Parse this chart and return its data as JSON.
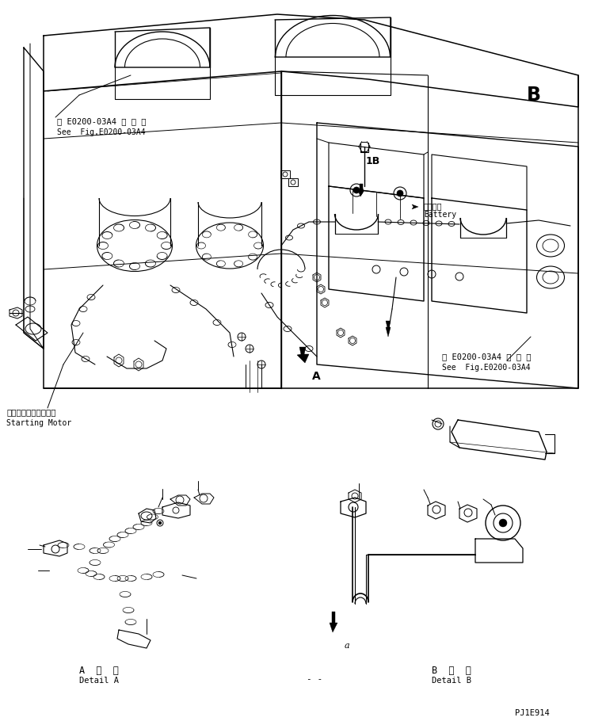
{
  "bg_color": "#ffffff",
  "line_color": "#000000",
  "figsize": [
    7.65,
    9.15
  ],
  "dpi": 100,
  "labels": {
    "top_left_jp": "第 E0200-03A4 図 参 照",
    "top_left_en": "See  Fig.E0200-03A4",
    "starting_motor_jp": "スターティングモータ",
    "starting_motor_en": "Starting Motor",
    "battery_jp": "バッテリ",
    "battery_en": "Battery",
    "right_ref_jp": "第 E0200-03A4 図 参 照",
    "right_ref_en": "See  Fig.E0200-03A4",
    "label_1B": "1B",
    "label_B": "B",
    "detail_a_jp": "A  詳  細",
    "detail_a_en": "Detail A",
    "detail_b_jp": "B  詳  細",
    "detail_b_en": "Detail B",
    "page_num": "PJ1E914",
    "label_A": "A",
    "label_a": "a",
    "dashes": "- -"
  }
}
